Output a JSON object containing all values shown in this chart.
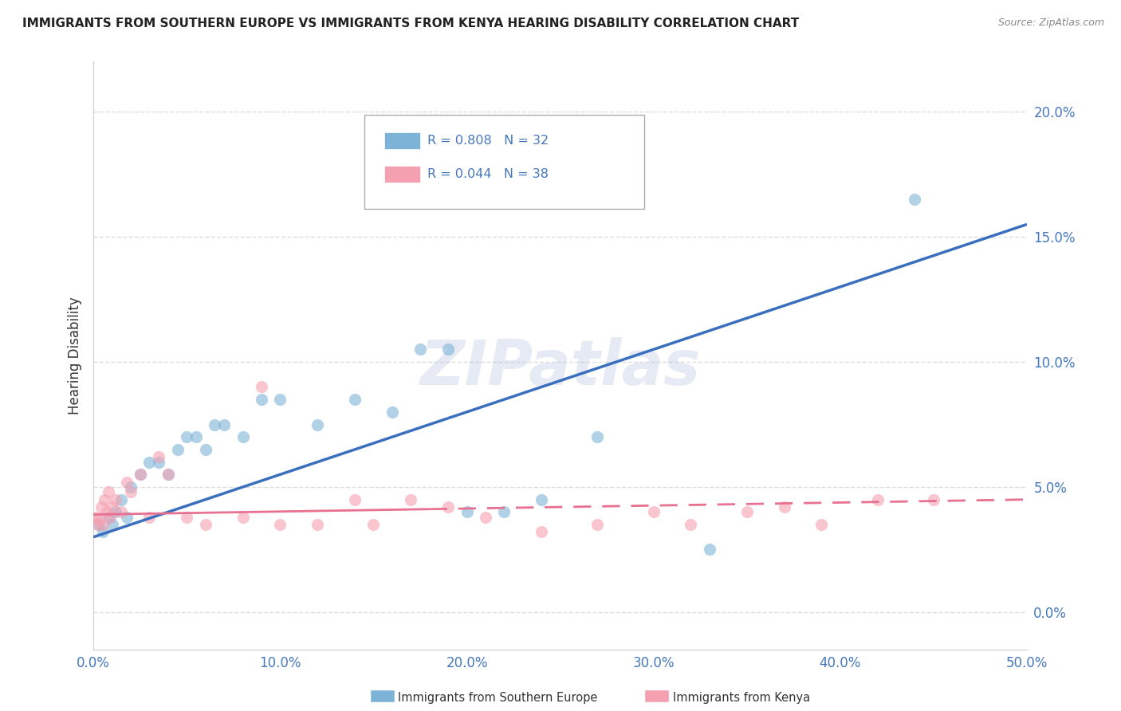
{
  "title": "IMMIGRANTS FROM SOUTHERN EUROPE VS IMMIGRANTS FROM KENYA HEARING DISABILITY CORRELATION CHART",
  "source": "Source: ZipAtlas.com",
  "ylabel": "Hearing Disability",
  "legend_label1": "Immigrants from Southern Europe",
  "legend_label2": "Immigrants from Kenya",
  "legend_R1": "R = 0.808",
  "legend_N1": "N = 32",
  "legend_R2": "R = 0.044",
  "legend_N2": "N = 38",
  "blue_color": "#7EB3D8",
  "pink_color": "#F5A0B0",
  "blue_line_color": "#3A6FBF",
  "pink_line_color": "#E87090",
  "watermark": "ZIPatlas",
  "blue_scatter_x": [
    0.3,
    0.5,
    0.8,
    1.0,
    1.2,
    1.5,
    1.8,
    2.0,
    2.5,
    3.0,
    3.5,
    4.0,
    4.5,
    5.0,
    5.5,
    6.0,
    6.5,
    7.0,
    8.0,
    9.0,
    10.0,
    12.0,
    14.0,
    16.0,
    17.5,
    19.0,
    20.0,
    22.0,
    24.0,
    27.0,
    33.0,
    44.0
  ],
  "blue_scatter_y": [
    3.5,
    3.2,
    3.8,
    3.5,
    4.0,
    4.5,
    3.8,
    5.0,
    5.5,
    6.0,
    6.0,
    5.5,
    6.5,
    7.0,
    7.0,
    6.5,
    7.5,
    7.5,
    7.0,
    8.5,
    8.5,
    7.5,
    8.5,
    8.0,
    10.5,
    10.5,
    4.0,
    4.0,
    4.5,
    7.0,
    2.5,
    16.5
  ],
  "pink_scatter_x": [
    0.1,
    0.2,
    0.3,
    0.4,
    0.5,
    0.6,
    0.7,
    0.8,
    0.9,
    1.0,
    1.2,
    1.5,
    1.8,
    2.0,
    2.5,
    3.0,
    3.5,
    4.0,
    5.0,
    6.0,
    8.0,
    9.0,
    10.0,
    12.0,
    14.0,
    15.0,
    17.0,
    19.0,
    21.0,
    24.0,
    27.0,
    30.0,
    32.0,
    35.0,
    37.0,
    39.0,
    42.0,
    45.0
  ],
  "pink_scatter_y": [
    3.8,
    3.5,
    3.7,
    4.2,
    3.5,
    4.5,
    4.0,
    4.8,
    3.8,
    4.2,
    4.5,
    4.0,
    5.2,
    4.8,
    5.5,
    3.8,
    6.2,
    5.5,
    3.8,
    3.5,
    3.8,
    9.0,
    3.5,
    3.5,
    4.5,
    3.5,
    4.5,
    4.2,
    3.8,
    3.2,
    3.5,
    4.0,
    3.5,
    4.0,
    4.2,
    3.5,
    4.5,
    4.5
  ],
  "xlim": [
    0,
    50
  ],
  "ylim": [
    -1.5,
    22
  ],
  "yticks": [
    0,
    5,
    10,
    15,
    20
  ],
  "ytick_labels": [
    "0.0%",
    "5.0%",
    "10.0%",
    "15.0%",
    "20.0%"
  ],
  "xticks": [
    0,
    10,
    20,
    30,
    40,
    50
  ],
  "xtick_labels": [
    "0.0%",
    "10.0%",
    "20.0%",
    "30.0%",
    "40.0%",
    "50.0%"
  ],
  "blue_line_x0": 0,
  "blue_line_y0": 3.0,
  "blue_line_x1": 50,
  "blue_line_y1": 15.5,
  "pink_line_x0": 0,
  "pink_line_y0": 3.9,
  "pink_line_x1": 50,
  "pink_line_y1": 4.5,
  "pink_solid_end": 18,
  "grid_color": "#DDDDDD",
  "axis_color": "#4477BB",
  "background_color": "#FFFFFF"
}
